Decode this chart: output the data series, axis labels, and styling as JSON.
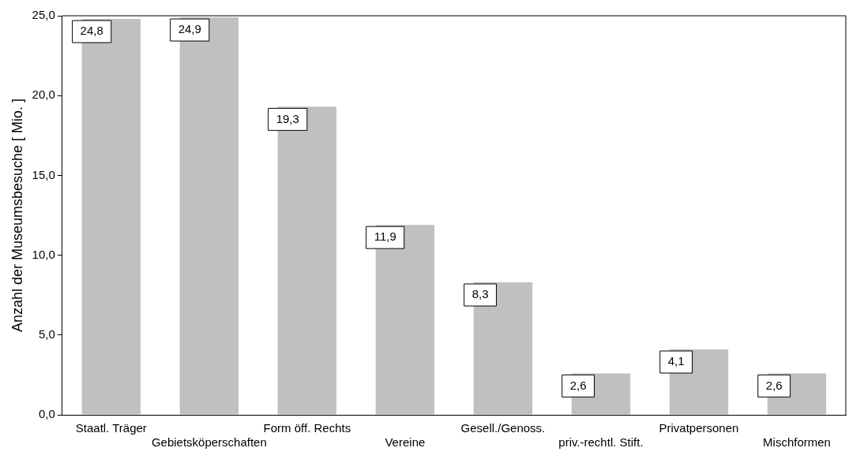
{
  "chart_data": {
    "type": "bar",
    "ylabel": "Anzahl der Museumsbesuche [ Mio. ]",
    "categories": [
      "Staatl. Träger",
      "Gebietsköperschaften",
      "Form öff. Rechts",
      "Vereine",
      "Gesell./Genoss.",
      "priv.-rechtl. Stift.",
      "Privatpersonen",
      "Mischformen"
    ],
    "values": [
      24.8,
      24.9,
      19.3,
      11.9,
      8.3,
      2.6,
      4.1,
      2.6
    ],
    "value_labels": [
      "24,8",
      "24,9",
      "19,3",
      "11,9",
      "8,3",
      "2,6",
      "4,1",
      "2,6"
    ],
    "color": "#c0c0c0",
    "ylim": [
      0,
      25
    ],
    "yticks": [
      {
        "value": 0,
        "label": "0,0"
      },
      {
        "value": 5,
        "label": "5,0"
      },
      {
        "value": 10,
        "label": "10,0"
      },
      {
        "value": 15,
        "label": "15,0"
      },
      {
        "value": 20,
        "label": "20,0"
      },
      {
        "value": 25,
        "label": "25,0"
      }
    ],
    "grid": false,
    "legend": false
  }
}
